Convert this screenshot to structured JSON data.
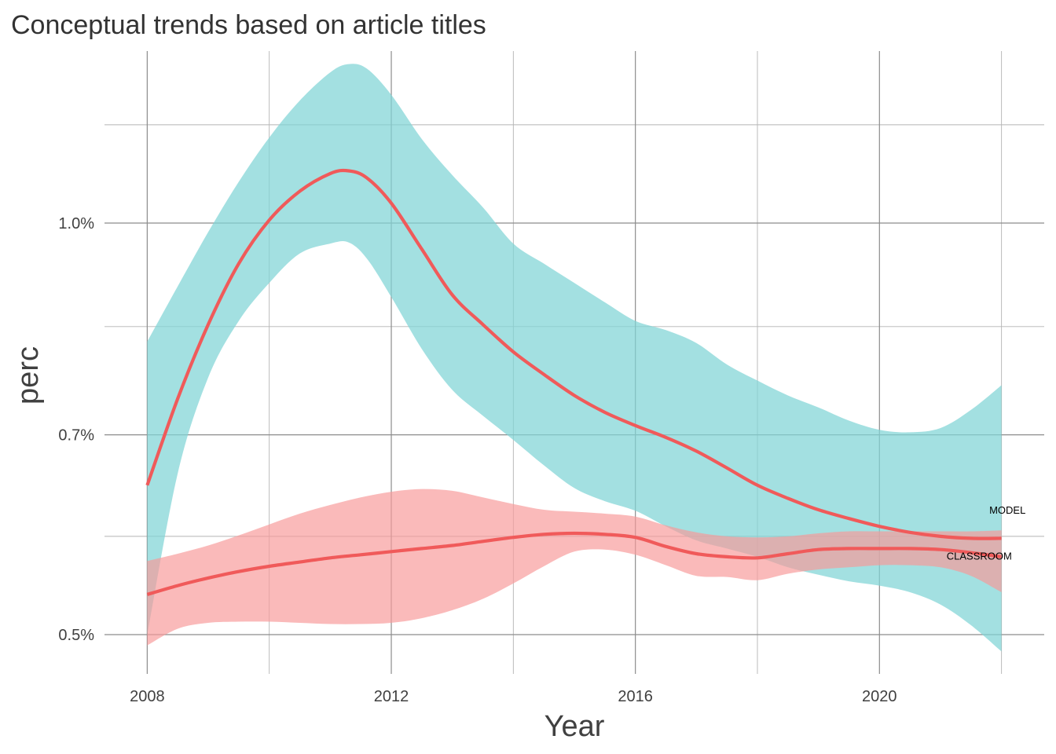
{
  "chart_data": {
    "type": "line",
    "title": "Conceptual trends based on article titles",
    "xlabel": "Year",
    "ylabel": "perc",
    "xlim": [
      2007.3,
      2022.7
    ],
    "ylim": [
      0.00468,
      0.01336
    ],
    "y_scale": "log",
    "x_ticks": [
      {
        "value": 2008,
        "label": "2008"
      },
      {
        "value": 2012,
        "label": "2012"
      },
      {
        "value": 2016,
        "label": "2016"
      },
      {
        "value": 2020,
        "label": "2020"
      }
    ],
    "x_minor_ticks": [
      2010,
      2014,
      2018,
      2022
    ],
    "y_ticks": [
      {
        "value": 0.005,
        "label": "0.5%"
      },
      {
        "value": 0.007,
        "label": "0.7%"
      },
      {
        "value": 0.01,
        "label": "1.0%"
      }
    ],
    "y_minor_ticks": [
      0.0059,
      0.0084,
      0.0118
    ],
    "grid": true,
    "legend": "none",
    "colors": {
      "line": "#f05a5a",
      "model_band": "#80d4d6",
      "classroom_band": "#f79a9a"
    },
    "series": [
      {
        "name": "MODEL",
        "x": [
          2008,
          2008.5,
          2009,
          2009.5,
          2010,
          2010.5,
          2011,
          2011.3,
          2011.6,
          2012,
          2012.5,
          2013,
          2013.5,
          2014,
          2014.5,
          2015,
          2015.5,
          2016,
          2016.5,
          2017,
          2017.5,
          2018,
          2018.5,
          2019,
          2019.5,
          2020,
          2020.5,
          2021,
          2021.5,
          2022
        ],
        "y": [
          0.00643,
          0.00744,
          0.00843,
          0.00934,
          0.01005,
          0.01055,
          0.01087,
          0.01092,
          0.01079,
          0.01034,
          0.00957,
          0.00886,
          0.00843,
          0.00805,
          0.00775,
          0.00748,
          0.00727,
          0.00711,
          0.00697,
          0.00681,
          0.00662,
          0.00643,
          0.00629,
          0.00617,
          0.00608,
          0.006,
          0.00594,
          0.0059,
          0.00588,
          0.00588
        ],
        "lower": [
          0.005,
          0.00656,
          0.00771,
          0.00848,
          0.00904,
          0.0095,
          0.00966,
          0.00968,
          0.00942,
          0.00883,
          0.00809,
          0.00755,
          0.00723,
          0.00694,
          0.00665,
          0.0064,
          0.00626,
          0.00616,
          0.006,
          0.00586,
          0.00578,
          0.0057,
          0.0056,
          0.00553,
          0.00547,
          0.00543,
          0.00537,
          0.00526,
          0.00508,
          0.00486
        ],
        "upper": [
          0.00819,
          0.00899,
          0.00985,
          0.01072,
          0.01155,
          0.01229,
          0.01289,
          0.01307,
          0.01297,
          0.01241,
          0.01152,
          0.01084,
          0.01027,
          0.00966,
          0.00934,
          0.00904,
          0.00875,
          0.00848,
          0.00835,
          0.00817,
          0.00788,
          0.00767,
          0.00748,
          0.00733,
          0.00717,
          0.00706,
          0.00703,
          0.00708,
          0.0073,
          0.00761
        ]
      },
      {
        "name": "CLASSROOM",
        "x": [
          2008,
          2008.5,
          2009,
          2009.5,
          2010,
          2010.5,
          2011,
          2011.5,
          2012,
          2012.5,
          2013,
          2013.5,
          2014,
          2014.5,
          2015,
          2015.5,
          2016,
          2016.5,
          2017,
          2017.5,
          2018,
          2018.5,
          2019,
          2019.5,
          2020,
          2020.5,
          2021,
          2021.5,
          2022
        ],
        "y": [
          0.00535,
          0.00543,
          0.0055,
          0.00556,
          0.00561,
          0.00565,
          0.00569,
          0.00572,
          0.00575,
          0.00578,
          0.00581,
          0.00585,
          0.00589,
          0.00592,
          0.00593,
          0.00592,
          0.00589,
          0.0058,
          0.00573,
          0.0057,
          0.00569,
          0.00573,
          0.00577,
          0.00578,
          0.00578,
          0.00578,
          0.00577,
          0.00574,
          0.0057
        ],
        "lower": [
          0.00491,
          0.00505,
          0.0051,
          0.00511,
          0.00511,
          0.0051,
          0.00509,
          0.00509,
          0.0051,
          0.00514,
          0.00521,
          0.00531,
          0.00545,
          0.00561,
          0.00575,
          0.00577,
          0.00572,
          0.00562,
          0.00552,
          0.00551,
          0.00548,
          0.00554,
          0.00558,
          0.0056,
          0.00562,
          0.00562,
          0.0056,
          0.00552,
          0.00537
        ],
        "upper": [
          0.00566,
          0.00573,
          0.00581,
          0.00591,
          0.00602,
          0.00613,
          0.00622,
          0.0063,
          0.00636,
          0.00639,
          0.00637,
          0.0063,
          0.00623,
          0.00617,
          0.00615,
          0.00613,
          0.0061,
          0.00601,
          0.00594,
          0.0059,
          0.00589,
          0.0059,
          0.00593,
          0.00595,
          0.00595,
          0.00595,
          0.00595,
          0.00595,
          0.00596
        ]
      }
    ],
    "annotations": [
      {
        "text": "MODEL",
        "x": 2021.8,
        "y": 0.00617
      },
      {
        "text": "CLASSROOM",
        "x": 2021.1,
        "y": 0.00571
      }
    ]
  }
}
